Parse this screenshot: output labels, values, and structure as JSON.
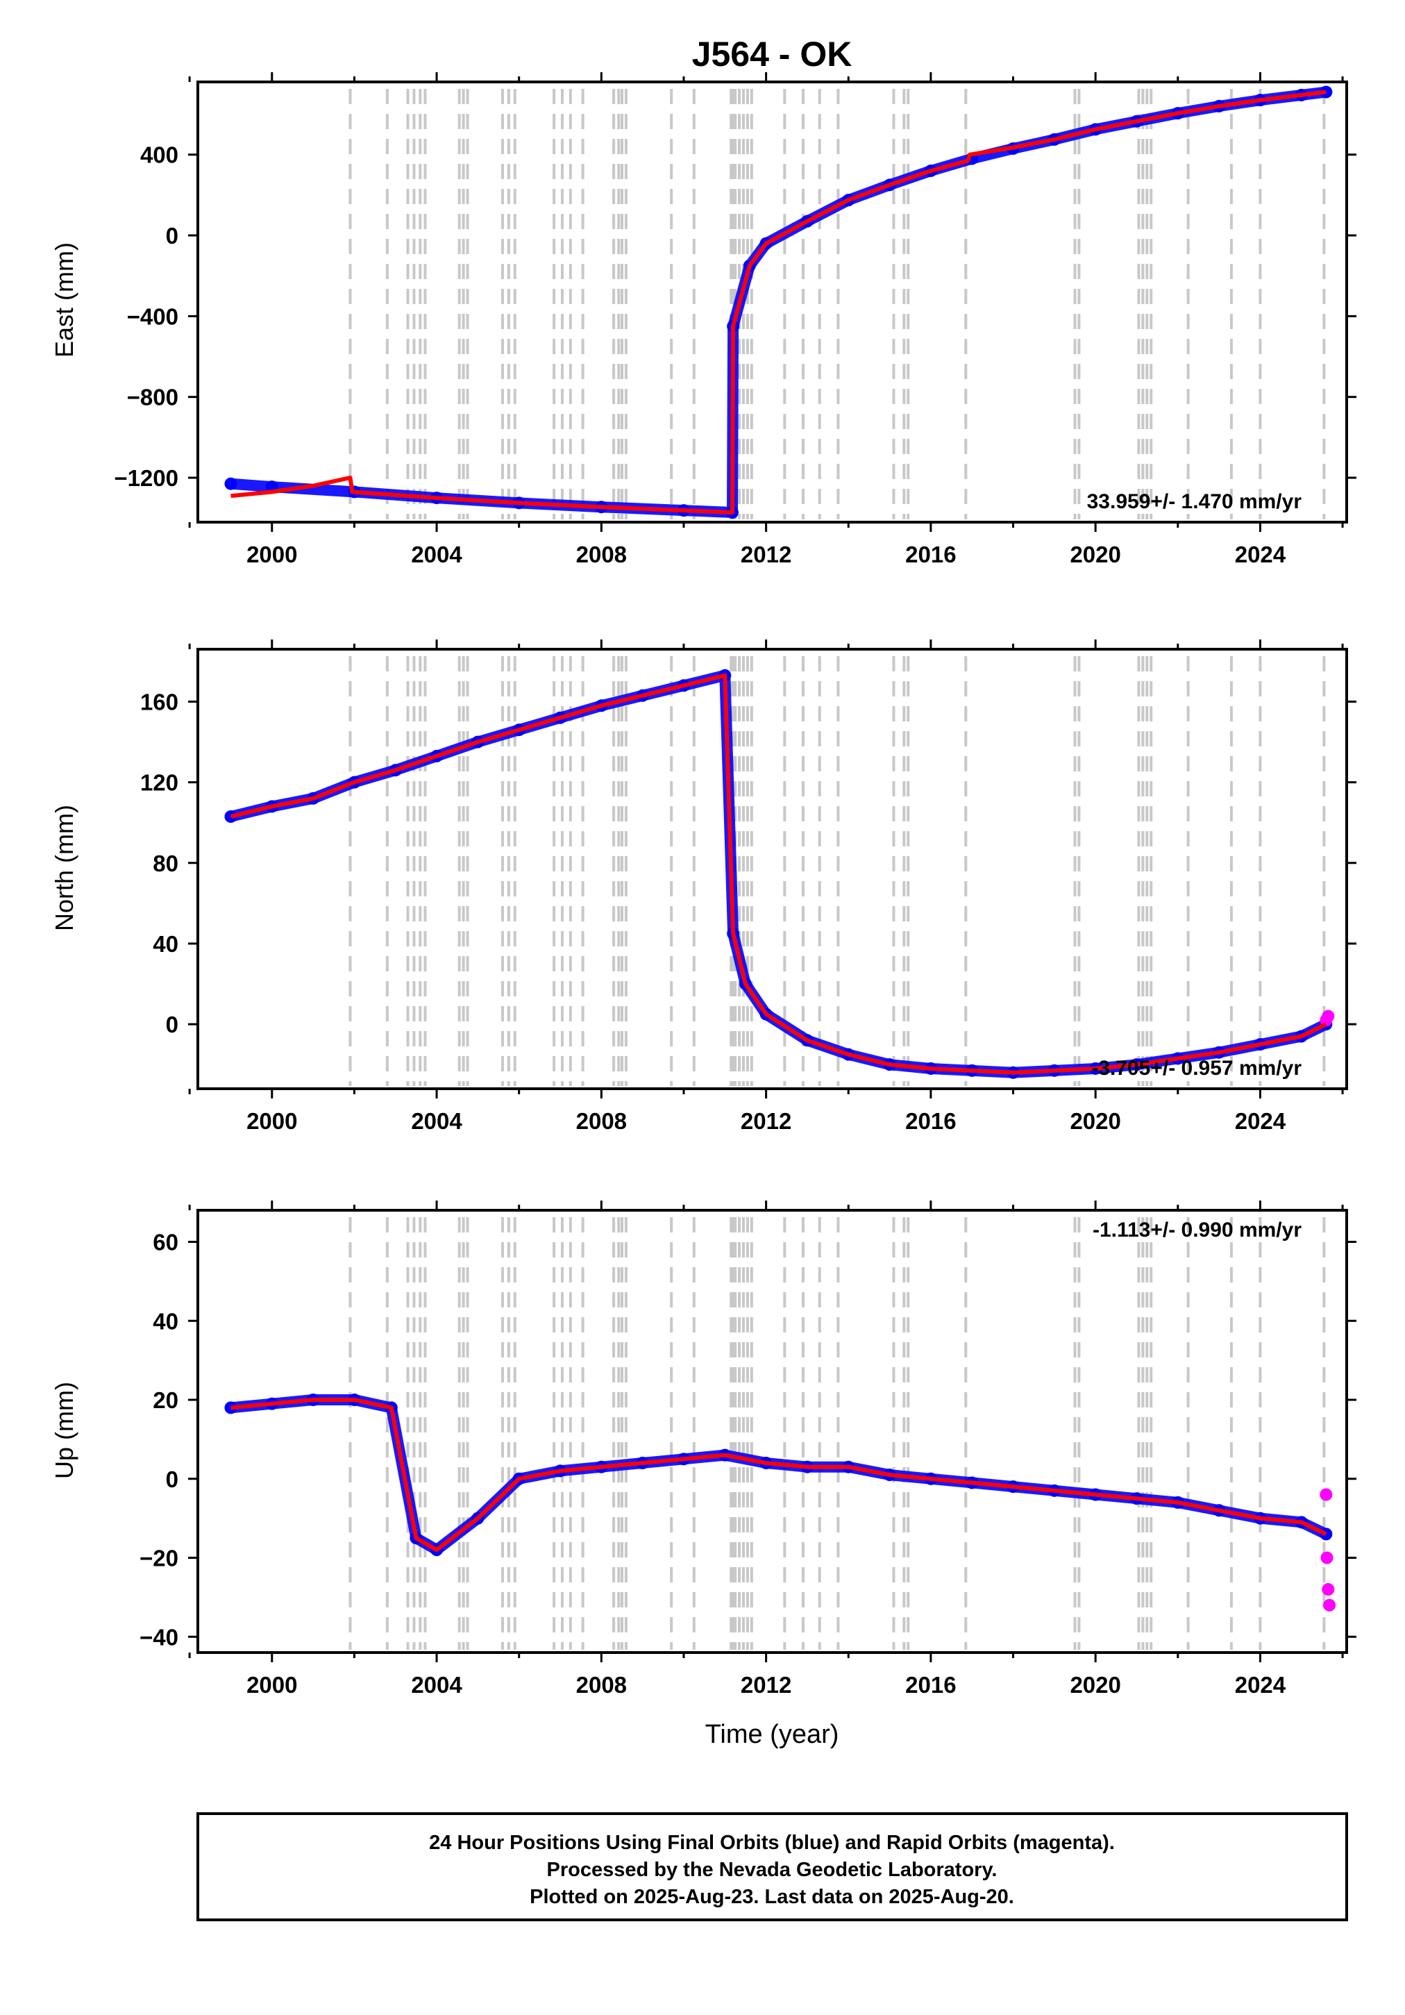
{
  "figure": {
    "title": "J564 - OK",
    "time_axis_label": "Time (year)",
    "footer_lines": [
      "24 Hour Positions Using Final Orbits (blue) and Rapid Orbits (magenta).",
      "Processed by the Nevada Geodetic Laboratory.",
      "Plotted on 2025-Aug-23. Last data on 2025-Aug-20."
    ]
  },
  "colors": {
    "final_orbits": "#0000ff",
    "rapid_orbits": "#ff00ff",
    "model_fit": "#ff0000",
    "event_lines": "#c8c8c8",
    "frame": "#000000"
  },
  "chart_data": [
    {
      "type": "scatter",
      "ylabel": "East (mm)",
      "xlim": [
        1998.2,
        2026.1
      ],
      "ylim": [
        -1420,
        760
      ],
      "xticks": [
        2000,
        2004,
        2008,
        2012,
        2016,
        2020,
        2024
      ],
      "yticks": [
        -1200,
        -800,
        -400,
        0,
        400
      ],
      "rate_label": "33.959+/- 1.470 mm/yr",
      "rate_position": "bottom-right",
      "grid": false,
      "series": [
        {
          "color": "blue",
          "approx_points": [
            [
              1999.0,
              -1230
            ],
            [
              2000.0,
              -1245
            ],
            [
              2002.0,
              -1270
            ],
            [
              2004.0,
              -1300
            ],
            [
              2006.0,
              -1325
            ],
            [
              2008.0,
              -1345
            ],
            [
              2010.0,
              -1362
            ],
            [
              2011.18,
              -1372
            ],
            [
              2011.2,
              -450
            ],
            [
              2011.6,
              -150
            ],
            [
              2012.0,
              -40
            ],
            [
              2013.0,
              70
            ],
            [
              2014.0,
              175
            ],
            [
              2015.0,
              250
            ],
            [
              2016.0,
              320
            ],
            [
              2017.0,
              380
            ],
            [
              2018.0,
              430
            ],
            [
              2019.0,
              475
            ],
            [
              2020.0,
              525
            ],
            [
              2021.0,
              565
            ],
            [
              2022.0,
              605
            ],
            [
              2023.0,
              640
            ],
            [
              2024.0,
              670
            ],
            [
              2025.0,
              695
            ],
            [
              2025.6,
              710
            ]
          ]
        },
        {
          "color": "red",
          "approx_points": [
            [
              1999.0,
              -1290
            ],
            [
              2000.0,
              -1270
            ],
            [
              2001.0,
              -1240
            ],
            [
              2001.9,
              -1200
            ],
            [
              2001.95,
              -1270
            ],
            [
              2004.0,
              -1300
            ],
            [
              2006.0,
              -1325
            ],
            [
              2008.0,
              -1345
            ],
            [
              2010.0,
              -1362
            ],
            [
              2011.18,
              -1372
            ],
            [
              2011.2,
              -450
            ],
            [
              2011.6,
              -150
            ],
            [
              2012.0,
              -40
            ],
            [
              2013.0,
              70
            ],
            [
              2014.0,
              175
            ],
            [
              2015.0,
              250
            ],
            [
              2016.0,
              320
            ],
            [
              2016.9,
              370
            ],
            [
              2016.95,
              400
            ],
            [
              2018.0,
              435
            ],
            [
              2019.0,
              475
            ],
            [
              2020.0,
              525
            ],
            [
              2021.0,
              565
            ],
            [
              2022.0,
              605
            ],
            [
              2023.0,
              640
            ],
            [
              2024.0,
              670
            ],
            [
              2025.0,
              695
            ],
            [
              2025.6,
              710
            ]
          ]
        }
      ],
      "annotations": [
        {
          "label": "",
          "value": 0
        }
      ]
    },
    {
      "type": "scatter",
      "ylabel": "North (mm)",
      "xlim": [
        1998.2,
        2026.1
      ],
      "ylim": [
        -32,
        186
      ],
      "xticks": [
        2000,
        2004,
        2008,
        2012,
        2016,
        2020,
        2024
      ],
      "yticks": [
        0,
        40,
        80,
        120,
        160
      ],
      "rate_label": "-3.705+/- 0.957 mm/yr",
      "rate_position": "bottom-right",
      "grid": false,
      "series": [
        {
          "color": "blue",
          "approx_points": [
            [
              1999.0,
              103
            ],
            [
              2000.0,
              108
            ],
            [
              2001.0,
              112
            ],
            [
              2002.0,
              120
            ],
            [
              2003.0,
              126
            ],
            [
              2004.0,
              133
            ],
            [
              2005.0,
              140
            ],
            [
              2006.0,
              146
            ],
            [
              2007.0,
              152
            ],
            [
              2008.0,
              158
            ],
            [
              2009.0,
              163
            ],
            [
              2010.0,
              168
            ],
            [
              2011.0,
              173
            ],
            [
              2011.2,
              45
            ],
            [
              2011.5,
              20
            ],
            [
              2012.0,
              5
            ],
            [
              2013.0,
              -8
            ],
            [
              2014.0,
              -15
            ],
            [
              2015.0,
              -20
            ],
            [
              2016.0,
              -22
            ],
            [
              2017.0,
              -23
            ],
            [
              2018.0,
              -24
            ],
            [
              2019.0,
              -23
            ],
            [
              2020.0,
              -22
            ],
            [
              2021.0,
              -20
            ],
            [
              2022.0,
              -17
            ],
            [
              2023.0,
              -14
            ],
            [
              2024.0,
              -10
            ],
            [
              2025.0,
              -6
            ],
            [
              2025.6,
              0
            ]
          ]
        },
        {
          "color": "magenta",
          "approx_points": [
            [
              2025.6,
              2
            ],
            [
              2025.65,
              4
            ]
          ]
        }
      ]
    },
    {
      "type": "scatter",
      "ylabel": "Up (mm)",
      "xlim": [
        1998.2,
        2026.1
      ],
      "ylim": [
        -44,
        68
      ],
      "xticks": [
        2000,
        2004,
        2008,
        2012,
        2016,
        2020,
        2024
      ],
      "yticks": [
        -40,
        -20,
        0,
        20,
        40,
        60
      ],
      "rate_label": "-1.113+/- 0.990 mm/yr",
      "rate_position": "top-right",
      "grid": false,
      "series": [
        {
          "color": "blue",
          "approx_points": [
            [
              1999.0,
              18
            ],
            [
              2000.0,
              19
            ],
            [
              2001.0,
              20
            ],
            [
              2002.0,
              20
            ],
            [
              2002.9,
              18
            ],
            [
              2003.5,
              -15
            ],
            [
              2004.0,
              -18
            ],
            [
              2005.0,
              -10
            ],
            [
              2006.0,
              0
            ],
            [
              2007.0,
              2
            ],
            [
              2008.0,
              3
            ],
            [
              2009.0,
              4
            ],
            [
              2010.0,
              5
            ],
            [
              2011.0,
              6
            ],
            [
              2012.0,
              4
            ],
            [
              2013.0,
              3
            ],
            [
              2014.0,
              3
            ],
            [
              2015.0,
              1
            ],
            [
              2016.0,
              0
            ],
            [
              2017.0,
              -1
            ],
            [
              2018.0,
              -2
            ],
            [
              2019.0,
              -3
            ],
            [
              2020.0,
              -4
            ],
            [
              2021.0,
              -5
            ],
            [
              2022.0,
              -6
            ],
            [
              2023.0,
              -8
            ],
            [
              2024.0,
              -10
            ],
            [
              2025.0,
              -11
            ],
            [
              2025.6,
              -14
            ]
          ]
        },
        {
          "color": "magenta",
          "approx_points": [
            [
              2025.6,
              -4
            ],
            [
              2025.62,
              -20
            ],
            [
              2025.65,
              -28
            ],
            [
              2025.68,
              -32
            ]
          ]
        }
      ]
    }
  ],
  "event_lines_years": [
    2001.9,
    2002.8,
    2003.3,
    2003.45,
    2003.6,
    2003.72,
    2004.55,
    2004.65,
    2004.75,
    2005.6,
    2005.75,
    2005.9,
    2006.85,
    2007.05,
    2007.25,
    2007.55,
    2008.3,
    2008.42,
    2008.5,
    2008.6,
    2009.7,
    2010.25,
    2011.15,
    2011.2,
    2011.25,
    2011.35,
    2011.45,
    2011.55,
    2011.65,
    2012.45,
    2012.9,
    2013.3,
    2013.75,
    2015.1,
    2015.35,
    2015.45,
    2016.85,
    2019.5,
    2019.6,
    2021.05,
    2021.15,
    2021.25,
    2021.35,
    2022.25,
    2023.3,
    2024.0,
    2025.55
  ]
}
